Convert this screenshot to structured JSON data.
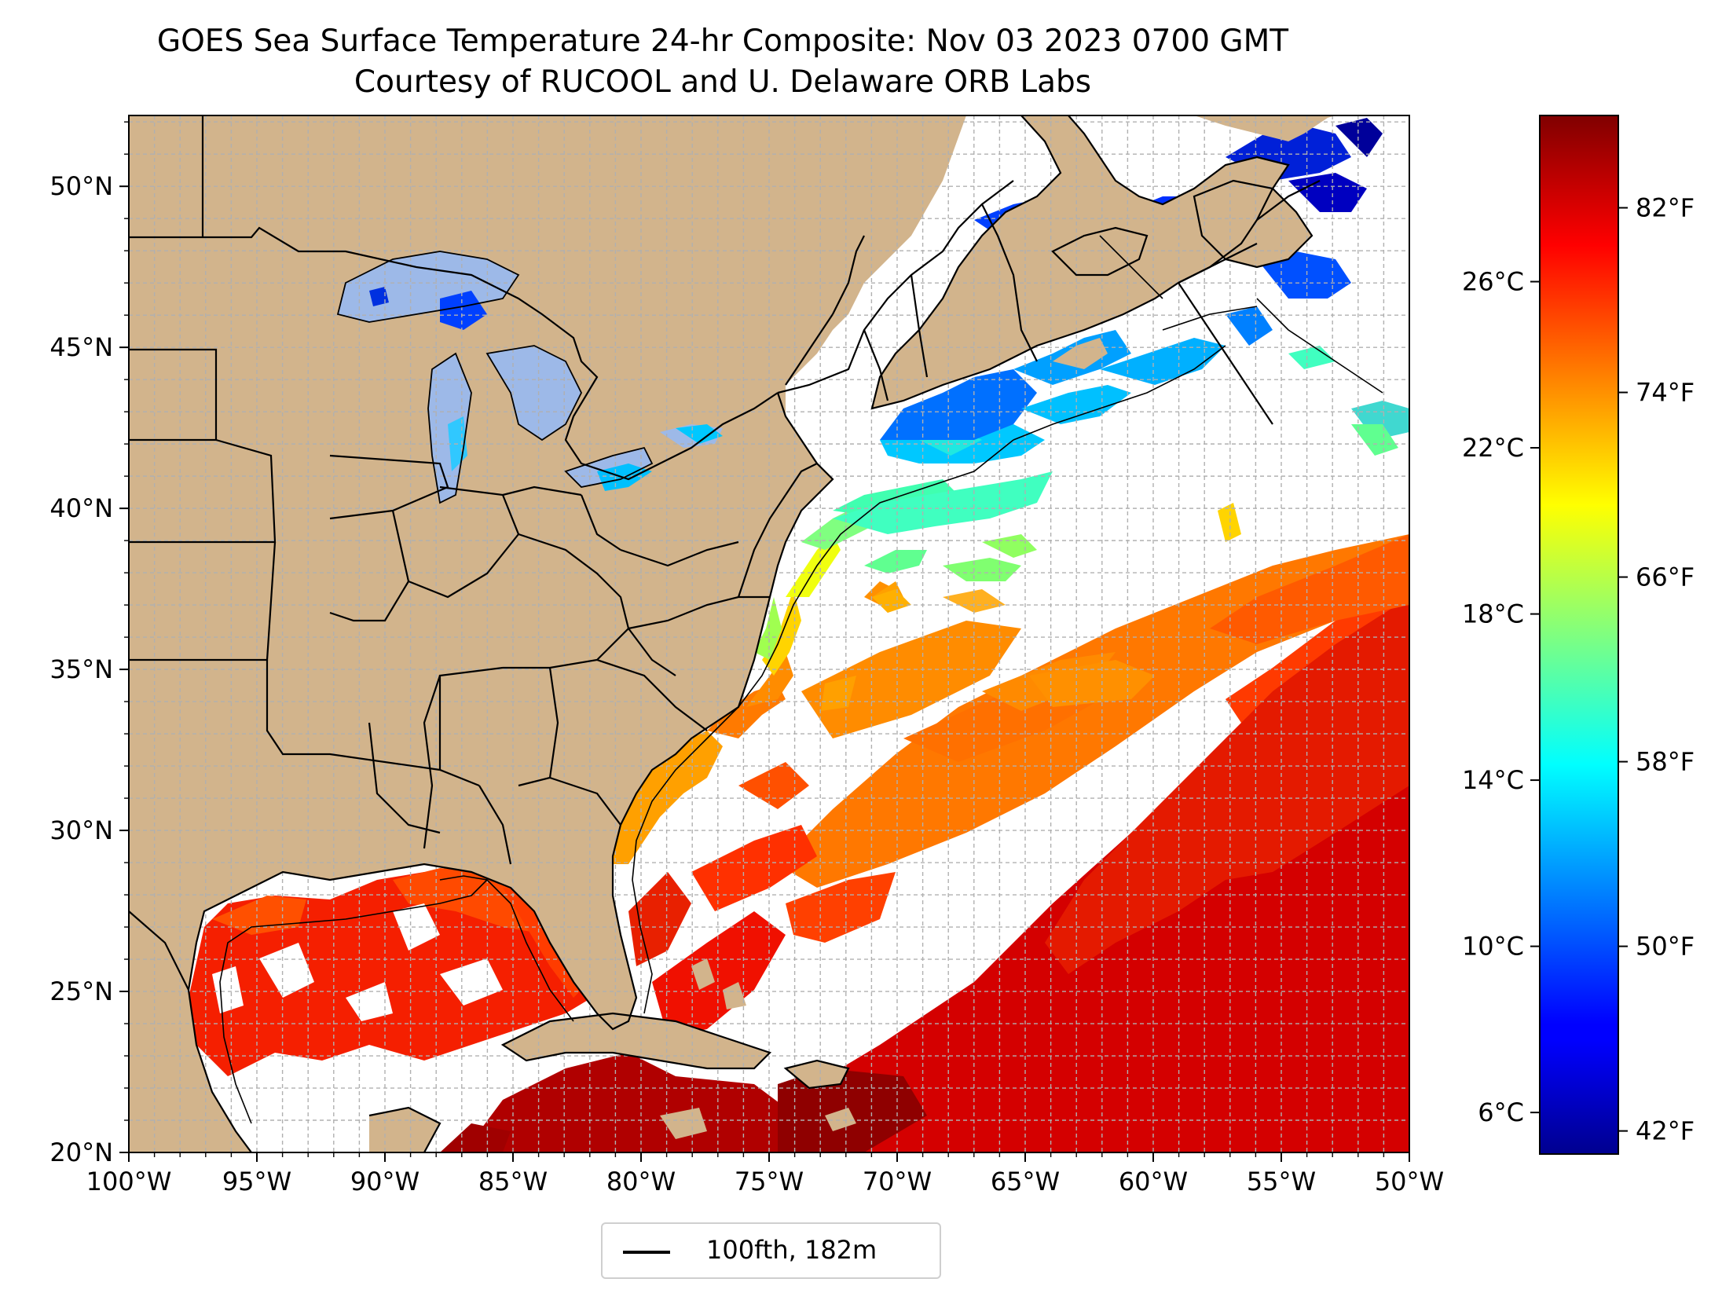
{
  "title": {
    "line1": "GOES Sea Surface Temperature 24-hr Composite: Nov 03 2023 0700 GMT",
    "line2": "Courtesy of RUCOOL and U. Delaware ORB Labs"
  },
  "axes": {
    "lon_range": [
      -100,
      -50
    ],
    "lat_range": [
      20,
      52.2
    ],
    "lon_ticks": [
      {
        "value": -100,
        "label": "100°W"
      },
      {
        "value": -95,
        "label": "95°W"
      },
      {
        "value": -90,
        "label": "90°W"
      },
      {
        "value": -85,
        "label": "85°W"
      },
      {
        "value": -80,
        "label": "80°W"
      },
      {
        "value": -75,
        "label": "75°W"
      },
      {
        "value": -70,
        "label": "70°W"
      },
      {
        "value": -65,
        "label": "65°W"
      },
      {
        "value": -60,
        "label": "60°W"
      },
      {
        "value": -55,
        "label": "55°W"
      },
      {
        "value": -50,
        "label": "50°W"
      }
    ],
    "lat_ticks": [
      {
        "value": 20,
        "label": "20°N"
      },
      {
        "value": 25,
        "label": "25°N"
      },
      {
        "value": 30,
        "label": "30°N"
      },
      {
        "value": 35,
        "label": "35°N"
      },
      {
        "value": 40,
        "label": "40°N"
      },
      {
        "value": 45,
        "label": "45°N"
      },
      {
        "value": 50,
        "label": "50°N"
      }
    ],
    "grid": true
  },
  "colorbar": {
    "colormap": "jet",
    "range_celsius": [
      5,
      30
    ],
    "celsius_ticks": [
      {
        "value": 6,
        "label": "6°C"
      },
      {
        "value": 10,
        "label": "10°C"
      },
      {
        "value": 14,
        "label": "14°C"
      },
      {
        "value": 18,
        "label": "18°C"
      },
      {
        "value": 22,
        "label": "22°C"
      },
      {
        "value": 26,
        "label": "26°C"
      }
    ],
    "fahrenheit_ticks": [
      {
        "value": 42,
        "label": "42°F"
      },
      {
        "value": 50,
        "label": "50°F"
      },
      {
        "value": 58,
        "label": "58°F"
      },
      {
        "value": 66,
        "label": "66°F"
      },
      {
        "value": 74,
        "label": "74°F"
      },
      {
        "value": 82,
        "label": "82°F"
      }
    ]
  },
  "legend": {
    "label": "100fth, 182m"
  },
  "colors": {
    "land": "#d2b48c",
    "lakes": "#9db9e8",
    "grid": "#bbbbbb",
    "boundary": "#000000",
    "no_data": "#ffffff"
  }
}
